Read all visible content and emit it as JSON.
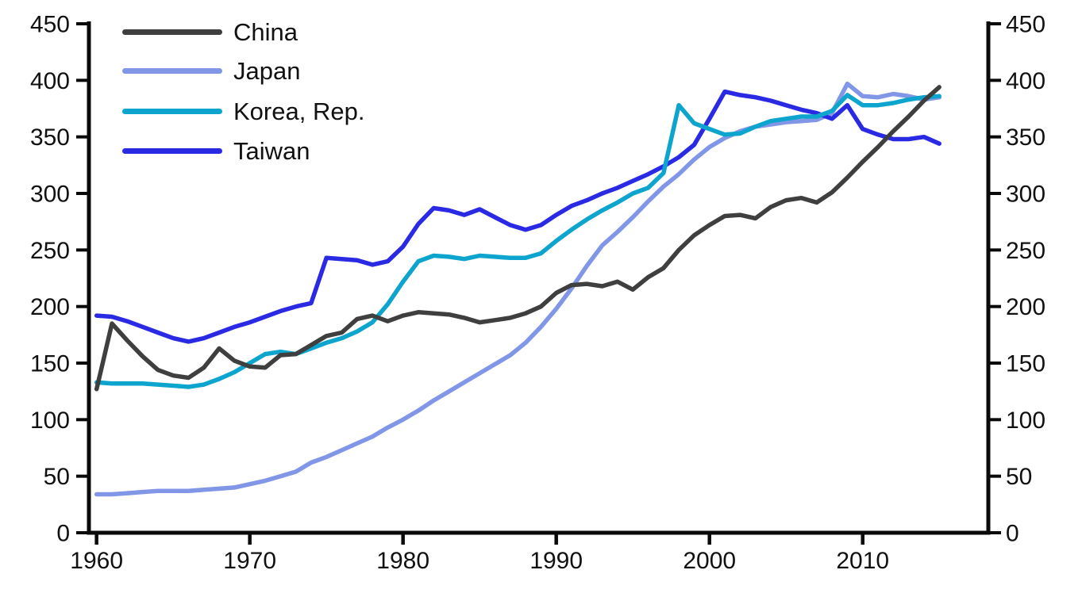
{
  "chart_data": {
    "type": "line",
    "title": "",
    "xlabel": "",
    "ylabel": "",
    "background_color": "#ffffff",
    "axis_color": "#0a0a0a",
    "text_color": "#111111",
    "grid": false,
    "dual_y_axis": true,
    "legend_position": "top-left",
    "x_ticks": [
      1960,
      1970,
      1980,
      1990,
      2000,
      2010
    ],
    "y_ticks": [
      0,
      50,
      100,
      150,
      200,
      250,
      300,
      350,
      400,
      450
    ],
    "ylim": [
      0,
      450
    ],
    "x_range_years": [
      1960,
      2015
    ],
    "years": [
      1960,
      1961,
      1962,
      1963,
      1964,
      1965,
      1966,
      1967,
      1968,
      1969,
      1970,
      1971,
      1972,
      1973,
      1974,
      1975,
      1976,
      1977,
      1978,
      1979,
      1980,
      1981,
      1982,
      1983,
      1984,
      1985,
      1986,
      1987,
      1988,
      1989,
      1990,
      1991,
      1992,
      1993,
      1994,
      1995,
      1996,
      1997,
      1998,
      1999,
      2000,
      2001,
      2002,
      2003,
      2004,
      2005,
      2006,
      2007,
      2008,
      2009,
      2010,
      2011,
      2012,
      2013,
      2014,
      2015
    ],
    "series": [
      {
        "name": "China",
        "color": "#3f3f3f",
        "values": [
          127,
          185,
          170,
          156,
          144,
          139,
          137,
          146,
          163,
          152,
          147,
          146,
          157,
          158,
          166,
          174,
          177,
          189,
          192,
          187,
          192,
          195,
          194,
          193,
          190,
          186,
          188,
          190,
          194,
          200,
          212,
          219,
          220,
          218,
          222,
          215,
          226,
          234,
          250,
          263,
          272,
          280,
          281,
          278,
          288,
          294,
          296,
          292,
          301,
          314,
          328,
          341,
          355,
          368,
          382,
          394
        ]
      },
      {
        "name": "Japan",
        "color": "#8296e8",
        "values": [
          34,
          34,
          35,
          36,
          37,
          37,
          37,
          38,
          39,
          40,
          43,
          46,
          50,
          54,
          62,
          67,
          73,
          79,
          85,
          93,
          100,
          108,
          117,
          125,
          133,
          141,
          149,
          157,
          168,
          182,
          198,
          216,
          236,
          254,
          266,
          279,
          293,
          306,
          317,
          330,
          341,
          349,
          355,
          359,
          361,
          363,
          364,
          365,
          371,
          397,
          386,
          385,
          388,
          386,
          383,
          385
        ]
      },
      {
        "name": "Korea, Rep.",
        "color": "#0da4cd",
        "values": [
          133,
          132,
          132,
          132,
          131,
          130,
          129,
          131,
          136,
          142,
          150,
          158,
          160,
          158,
          163,
          168,
          172,
          178,
          186,
          202,
          222,
          240,
          245,
          244,
          242,
          245,
          244,
          243,
          243,
          247,
          258,
          268,
          277,
          285,
          292,
          300,
          305,
          318,
          378,
          362,
          357,
          352,
          353,
          359,
          364,
          366,
          368,
          368,
          373,
          387,
          378,
          378,
          380,
          383,
          385,
          386
        ]
      },
      {
        "name": "Taiwan",
        "color": "#2a2ae4",
        "values": [
          192,
          191,
          187,
          182,
          177,
          172,
          169,
          172,
          177,
          182,
          186,
          191,
          196,
          200,
          203,
          243,
          242,
          241,
          237,
          240,
          253,
          273,
          287,
          285,
          281,
          286,
          279,
          272,
          268,
          272,
          281,
          289,
          294,
          300,
          305,
          311,
          317,
          324,
          332,
          343,
          366,
          390,
          387,
          385,
          382,
          378,
          374,
          371,
          366,
          378,
          357,
          352,
          348,
          348,
          350,
          344
        ]
      }
    ]
  }
}
